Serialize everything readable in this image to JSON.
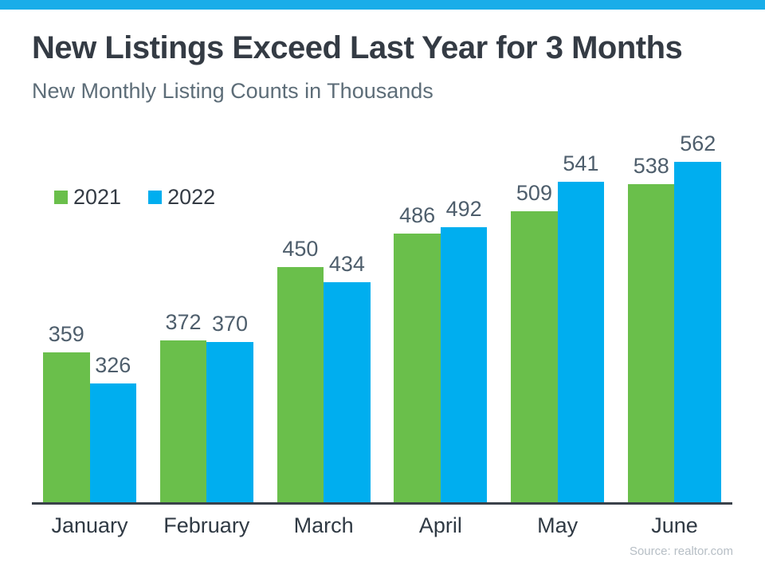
{
  "header": {
    "title": "New Listings Exceed Last Year for 3 Months",
    "subtitle": "New Monthly Listing Counts in Thousands"
  },
  "chart_data": {
    "type": "bar",
    "title": "New Listings Exceed Last Year for 3 Months",
    "subtitle": "New Monthly Listing Counts in Thousands",
    "categories": [
      "January",
      "February",
      "March",
      "April",
      "May",
      "June"
    ],
    "series": [
      {
        "name": "2021",
        "color": "#6abf4b",
        "values": [
          359,
          372,
          450,
          486,
          509,
          538
        ]
      },
      {
        "name": "2022",
        "color": "#00aeef",
        "values": [
          326,
          370,
          434,
          492,
          541,
          562
        ]
      }
    ],
    "ylim": [
      200,
      600
    ],
    "grid": false,
    "legend_position": "top-left",
    "value_labels": true
  },
  "legend": {
    "items": [
      {
        "label": "2021",
        "color": "#6abf4b"
      },
      {
        "label": "2022",
        "color": "#00aeef"
      }
    ]
  },
  "source": {
    "label": "Source: realtor.com"
  },
  "colors": {
    "accent_bar": "#19ade9",
    "title_text": "#343b44",
    "subtitle_text": "#5d6d78",
    "value_label_text": "#4e5e6c",
    "axis_line": "#3a414a",
    "source_text": "#b6bec5"
  }
}
